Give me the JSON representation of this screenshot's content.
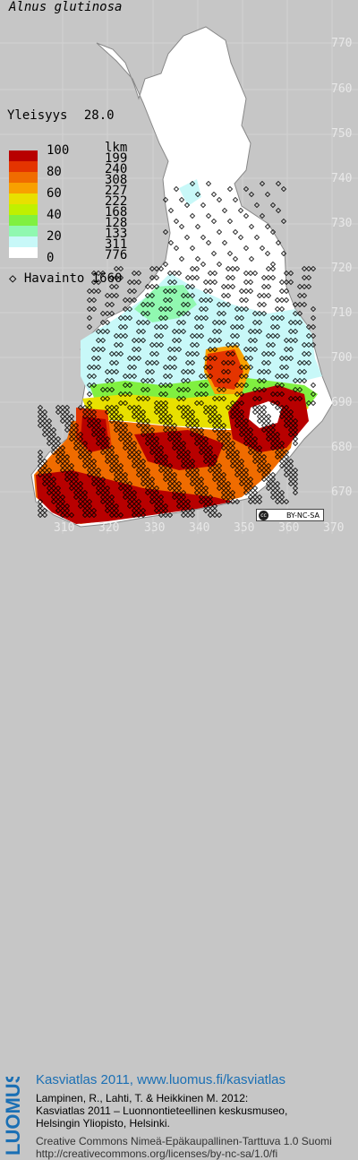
{
  "title": "Alnus glutinosa",
  "yleisyys_label": "Yleisyys",
  "yleisyys_value": "28.0",
  "legend": {
    "scale_labels": [
      "100",
      "80",
      "60",
      "40",
      "20",
      "0"
    ],
    "lkm_header": "lkm",
    "lkm_values": [
      "199",
      "240",
      "308",
      "227",
      "222",
      "168",
      "128",
      "133",
      "311",
      "776"
    ],
    "colors": [
      "#b80000",
      "#e43400",
      "#f06c00",
      "#f8a000",
      "#e8e000",
      "#c0f000",
      "#80f040",
      "#90f8b0",
      "#c8f8f8",
      "#ffffff"
    ],
    "havainto_label": "Havainto",
    "havainto_count": "1660"
  },
  "axes": {
    "y_ticks": [
      "770",
      "760",
      "750",
      "740",
      "730",
      "720",
      "710",
      "700",
      "690",
      "680",
      "670"
    ],
    "x_ticks": [
      "310",
      "320",
      "330",
      "340",
      "350",
      "360",
      "370"
    ]
  },
  "license_badge": "BY-NC-SA",
  "footer": {
    "logo_text": "LUOMUS",
    "atlas_line": "Kasviatlas 2011, www.luomus.fi/kasviatlas",
    "citation_line1": "Lampinen, R., Lahti, T. & Heikkinen M. 2012:",
    "citation_line2": "Kasviatlas 2011 – Luonnontieteellinen keskusmuseo,",
    "citation_line3": "Helsingin Yliopisto, Helsinki.",
    "license_line1": "Creative Commons Nimeä-Epäkaupallinen-Tarttuva 1.0 Suomi",
    "license_line2": "http://creativecommons.org/licenses/by-nc-sa/1.0/fi"
  }
}
